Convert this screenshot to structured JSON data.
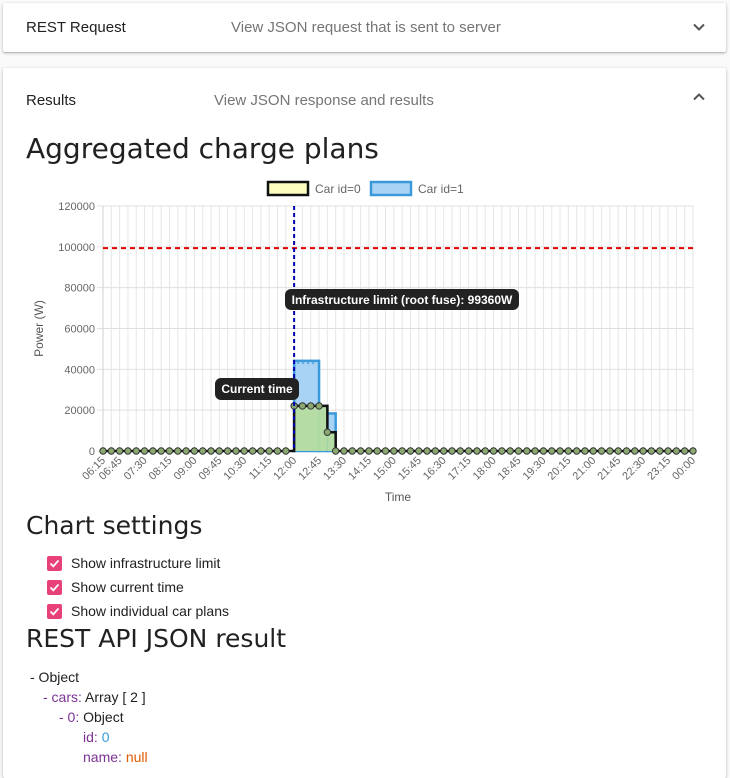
{
  "rest_panel": {
    "title": "REST Request",
    "description": "View JSON request that is sent to server"
  },
  "results_panel": {
    "title": "Results",
    "description": "View JSON response and results"
  },
  "aggregated_title": "Aggregated charge plans",
  "chart_settings": {
    "title": "Chart settings",
    "options": [
      {
        "label": "Show infrastructure limit",
        "checked": true
      },
      {
        "label": "Show current time",
        "checked": true
      },
      {
        "label": "Show individual car plans",
        "checked": true
      }
    ]
  },
  "json_result": {
    "title": "REST API JSON result",
    "root": "- Object",
    "cars_key": "- cars:",
    "cars_value": "Array [ 2 ]",
    "item0_key": "- 0:",
    "item0_value": "Object",
    "id_key": "id:",
    "id_value": "0",
    "name_key": "name:",
    "name_value": "null"
  },
  "colors": {
    "accent": "#e8417a",
    "car0_fill": "#b5dca0",
    "car1_fill": "#a9d3f5",
    "car1_stroke": "#3a9ad9",
    "limit_line": "#e00000",
    "time_line": "#0000aa"
  },
  "chart_data": {
    "type": "area",
    "xlabel": "Time",
    "ylabel": "Power (W)",
    "ylim": [
      0,
      120000
    ],
    "yticks": [
      0,
      20000,
      40000,
      60000,
      80000,
      100000,
      120000
    ],
    "xticks": [
      "06:15",
      "06:45",
      "07:30",
      "08:15",
      "09:00",
      "09:45",
      "10:30",
      "11:15",
      "12:00",
      "12:45",
      "13:30",
      "14:15",
      "15:00",
      "15:45",
      "16:30",
      "17:15",
      "18:00",
      "18:45",
      "19:30",
      "20:15",
      "21:00",
      "21:45",
      "22:30",
      "23:15",
      "00:00"
    ],
    "legend": [
      "Car id=0",
      "Car id=1"
    ],
    "legend_position": "top",
    "infrastructure_limit": 99360,
    "infrastructure_label": "Infrastructure limit (root fuse): 99360W",
    "current_time": "12:00",
    "current_time_label": "Current time",
    "series": [
      {
        "name": "Car id=0",
        "segments": [
          {
            "from": "12:00",
            "to": "13:00",
            "value": 22080
          },
          {
            "from": "13:00",
            "to": "13:15",
            "value": 9200
          }
        ]
      },
      {
        "name": "Car id=1",
        "segments": [
          {
            "from": "12:00",
            "to": "12:45",
            "value": 44160
          },
          {
            "from": "12:45",
            "to": "13:00",
            "value": 22080
          },
          {
            "from": "13:00",
            "to": "13:15",
            "value": 18400
          }
        ]
      }
    ]
  }
}
